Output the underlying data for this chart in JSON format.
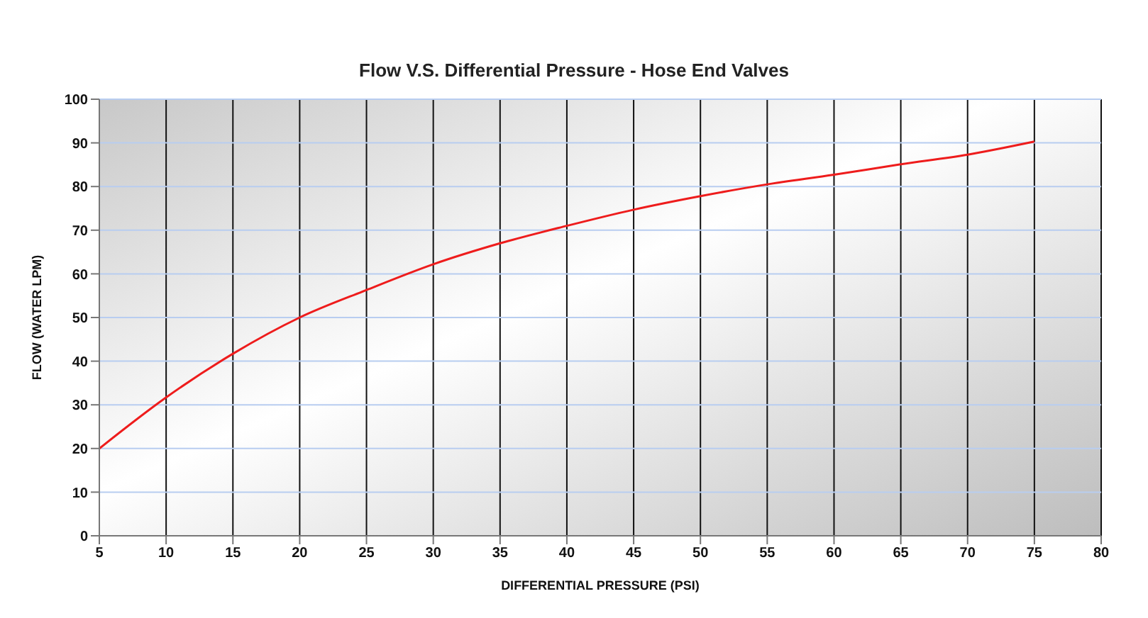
{
  "chart_data": {
    "type": "line",
    "title": "Flow V.S. Differential Pressure - Hose End Valves",
    "xlabel": "DIFFERENTIAL PRESSURE (PSI)",
    "ylabel": "FLOW (WATER LPM)",
    "x": [
      5,
      10,
      15,
      20,
      25,
      30,
      35,
      40,
      45,
      50,
      55,
      60,
      65,
      70,
      75
    ],
    "series": [
      {
        "color": "#ee1c1c",
        "values": [
          20,
          31.7,
          41.7,
          50,
          56.3,
          62.2,
          67,
          71,
          74.7,
          77.8,
          80.5,
          82.7,
          85.1,
          87.3,
          90.3
        ]
      }
    ],
    "xlim": [
      5,
      80
    ],
    "xticks": [
      5,
      10,
      15,
      20,
      25,
      30,
      35,
      40,
      45,
      50,
      55,
      60,
      65,
      70,
      75,
      80
    ],
    "ylim": [
      0,
      100
    ],
    "yticks": [
      0,
      10,
      20,
      30,
      40,
      50,
      60,
      70,
      80,
      90,
      100
    ],
    "grid": true,
    "marker": "none",
    "line_style": "solid"
  }
}
